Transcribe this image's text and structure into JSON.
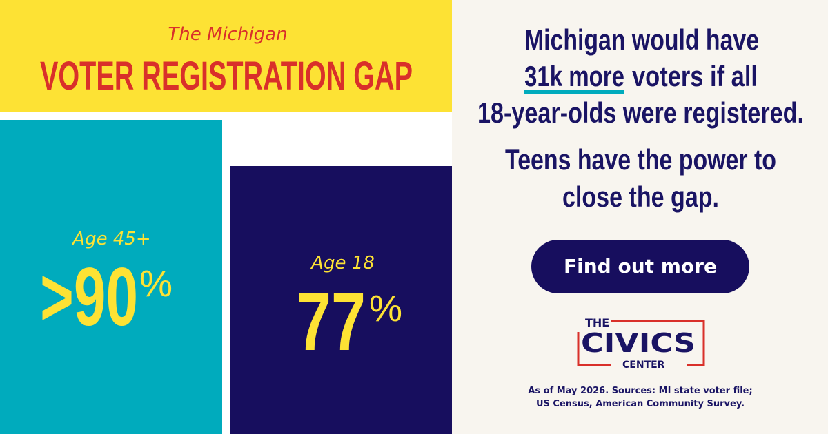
{
  "header": {
    "subtitle": "The Michigan",
    "title": "VOTER REGISTRATION GAP"
  },
  "groups": [
    {
      "label": "Age 45+",
      "figure": ">90",
      "unit": "%"
    },
    {
      "label": "Age 18",
      "figure": "77",
      "unit": "%"
    }
  ],
  "message": {
    "line1": "Michigan would have",
    "highlight": "31k more",
    "line2": "voters if all",
    "line3": "18-year-olds were registered."
  },
  "call_to_action": {
    "line1": "Teens have the power to",
    "line2": "close the gap."
  },
  "button": "Find out more",
  "logo": {
    "top": "THE",
    "main": "CIVICS",
    "bottom": "CENTER"
  },
  "footnote": [
    "As of May 2026. Sources: MI state voter file;",
    "US Census, American Community Survey."
  ]
}
